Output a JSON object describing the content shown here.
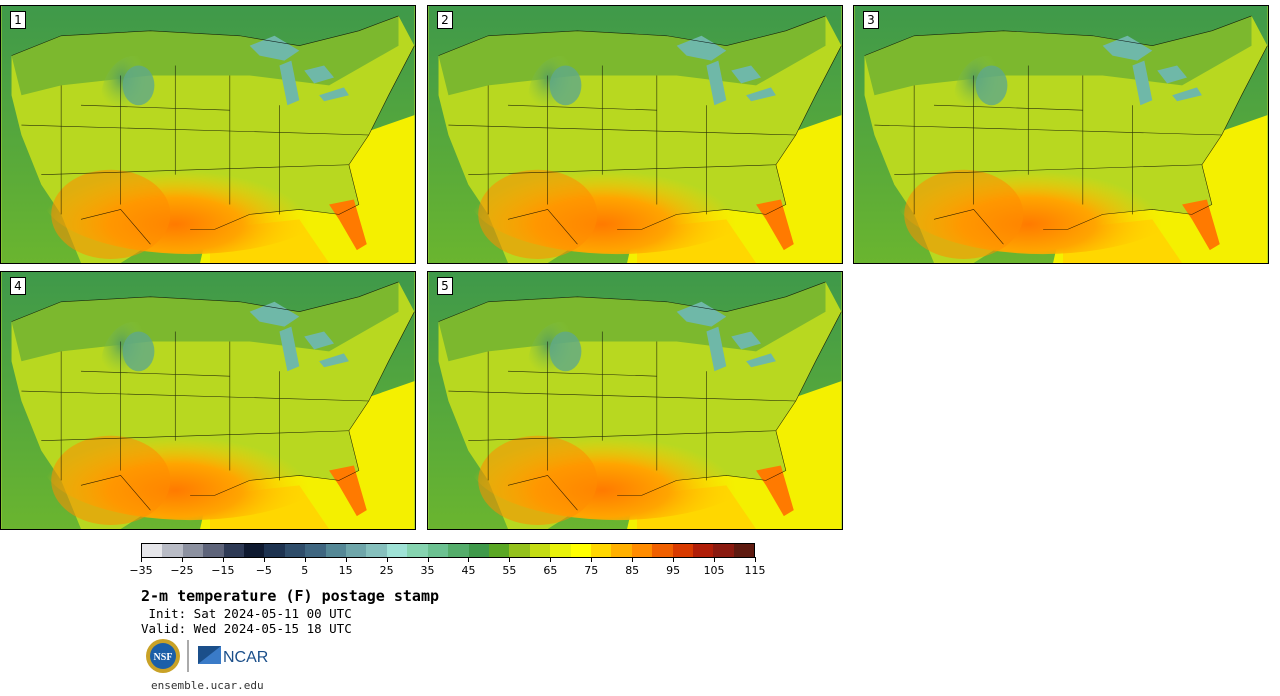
{
  "stamps": [
    {
      "label": "1"
    },
    {
      "label": "2"
    },
    {
      "label": "3"
    },
    {
      "label": "4"
    },
    {
      "label": "5"
    }
  ],
  "colorbar": {
    "colors": [
      "#e6e6ea",
      "#b9bcc6",
      "#8c91a0",
      "#5e647a",
      "#2e3a55",
      "#0f1a30",
      "#1e3350",
      "#2f4d6a",
      "#3f6680",
      "#558896",
      "#6fa6aa",
      "#86c0bd",
      "#9fe2d6",
      "#86d4b0",
      "#6cc191",
      "#55ad6b",
      "#3f994a",
      "#5aa724",
      "#94c11c",
      "#c4dc13",
      "#e8f20a",
      "#ffff00",
      "#ffd700",
      "#ffb000",
      "#ff8c00",
      "#f06000",
      "#d83a00",
      "#b01e08",
      "#8a1a10",
      "#5e1a10"
    ],
    "tick_labels": [
      "−35",
      "−25",
      "−15",
      "−5",
      "5",
      "15",
      "25",
      "35",
      "45",
      "55",
      "65",
      "75",
      "85",
      "95",
      "105",
      "115"
    ]
  },
  "title": "2-m temperature (F) postage stamp",
  "init_line": " Init: Sat 2024-05-11 00 UTC",
  "valid_line": "Valid: Wed 2024-05-15 18 UTC",
  "logos": {
    "nsf": "NSF",
    "ncar": "NCAR"
  },
  "site": "ensemble.ucar.edu"
}
